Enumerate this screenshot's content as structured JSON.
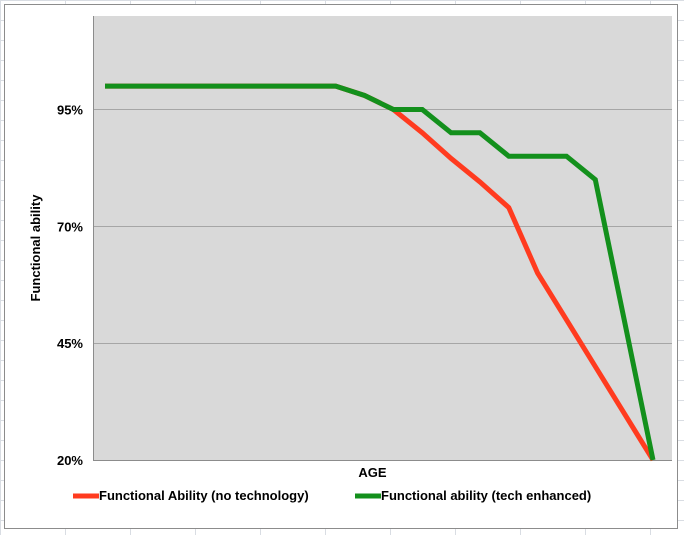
{
  "chart_data": {
    "type": "line",
    "title": "",
    "xlabel": "AGE",
    "ylabel": "Functional ability",
    "ylim": [
      20,
      115
    ],
    "y_ticks": [
      20,
      45,
      70,
      95
    ],
    "y_tick_labels": [
      "20%",
      "45%",
      "70%",
      "95%"
    ],
    "grid": true,
    "legend_position": "bottom",
    "x": [
      0,
      1,
      2,
      3,
      4,
      5,
      6,
      7,
      8,
      9,
      10,
      11,
      12,
      13,
      14,
      15,
      16,
      17,
      18,
      19
    ],
    "series": [
      {
        "name": "Functional Ability (no technology)",
        "color": "#ff3b1f",
        "values": [
          100,
          100,
          100,
          100,
          100,
          100,
          100,
          100,
          100,
          98,
          95,
          90,
          84.5,
          79.5,
          74,
          60,
          50,
          40,
          30,
          20
        ]
      },
      {
        "name": "Functional ability (tech enhanced)",
        "color": "#13901c",
        "values": [
          100,
          100,
          100,
          100,
          100,
          100,
          100,
          100,
          100,
          98,
          95,
          95,
          90,
          90,
          85,
          85,
          85,
          80,
          50,
          20
        ]
      }
    ]
  }
}
